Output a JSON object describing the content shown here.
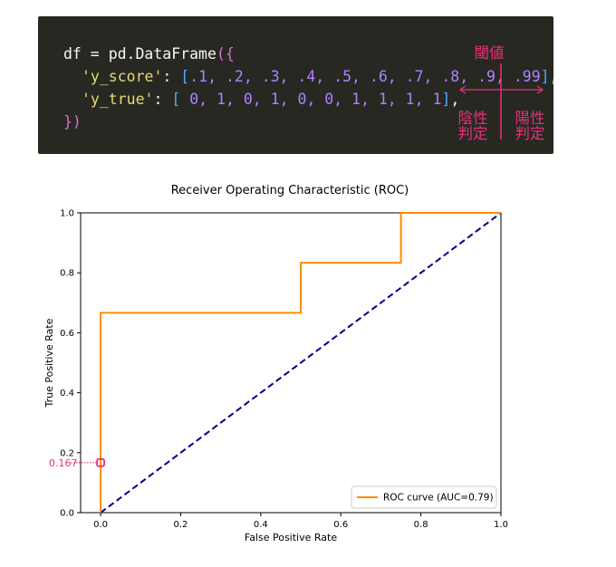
{
  "code": {
    "line1": {
      "var": "df",
      "eq": " = ",
      "call": "pd.DataFrame",
      "open": "({"
    },
    "line2": {
      "key": "'y_score'",
      "colon": ": ",
      "lb": "[",
      "values": ".1, .2, .3, .4, .5, .6, .7, .8, .9, .99",
      "rb": "]",
      "comma": ","
    },
    "line3": {
      "key": "'y_true'",
      "colon": ":  ",
      "lb": "[ ",
      "values": "0,  1,  0,  1,  0,  0,  1,  1,  1,  1",
      "rb": "]",
      "comma": ","
    },
    "line4": {
      "close": "})"
    },
    "colors": {
      "text": "#f8f8f2",
      "key": "#e6db74",
      "bracket_paren": "#ffd700",
      "bracket_square": "#57a8f5",
      "brace": "#d670d6",
      "number": "#ae81ff",
      "background": "#272822"
    }
  },
  "annotations": {
    "threshold": "閾値",
    "negative_line1": "陰性",
    "negative_line2": "判定",
    "positive_line1": "陽性",
    "positive_line2": "判定",
    "marker_value": "0.167",
    "color": "#e8317a"
  },
  "chart_data": {
    "type": "line",
    "title": "Receiver Operating Characteristic (ROC)",
    "xlabel": "False Positive Rate",
    "ylabel": "True Positive Rate",
    "xlim": [
      -0.05,
      1.0
    ],
    "ylim": [
      0.0,
      1.0
    ],
    "xticks": [
      0.0,
      0.2,
      0.4,
      0.6,
      0.8,
      1.0
    ],
    "yticks": [
      0.0,
      0.2,
      0.4,
      0.6,
      0.8,
      1.0
    ],
    "tick_labels_x": [
      "0.0",
      "0.2",
      "0.4",
      "0.6",
      "0.8",
      "1.0"
    ],
    "tick_labels_y": [
      "0.0",
      "0.2",
      "0.4",
      "0.6",
      "0.8",
      "1.0"
    ],
    "grid": false,
    "legend_position": "lower-right",
    "series": [
      {
        "name": "ROC curve (AUC=0.79)",
        "color": "#ff8c00",
        "style": "solid",
        "x": [
          0.0,
          0.0,
          0.0,
          0.5,
          0.5,
          0.75,
          0.75,
          1.0
        ],
        "y": [
          0.0,
          0.1667,
          0.6667,
          0.6667,
          0.8333,
          0.8333,
          1.0,
          1.0
        ]
      },
      {
        "color": "#000080",
        "style": "dashed",
        "x": [
          0.0,
          1.0
        ],
        "y": [
          0.0,
          1.0
        ]
      }
    ],
    "marker": {
      "x": 0.0,
      "y": 0.1667,
      "color": "#e8317a"
    }
  }
}
